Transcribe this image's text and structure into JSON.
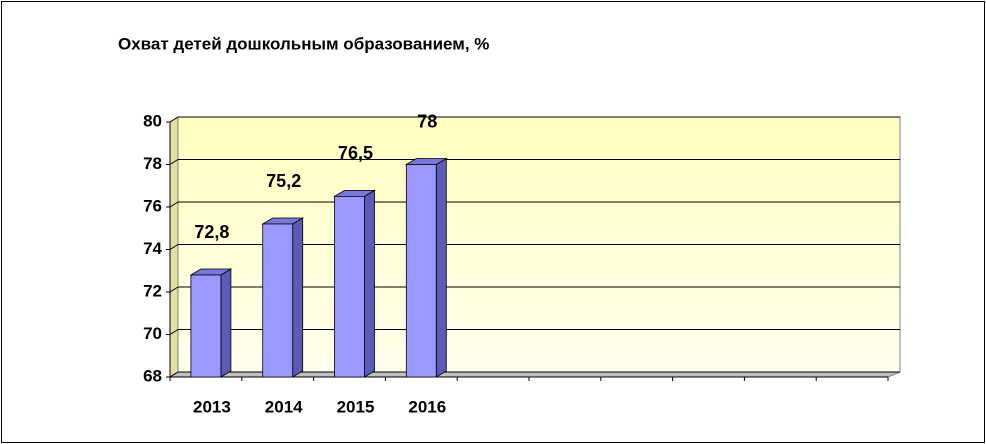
{
  "chart_data": {
    "type": "bar",
    "title": "Охват детей дошкольным образованием, %",
    "categories": [
      "2013",
      "2014",
      "2015",
      "2016",
      null,
      null,
      null,
      null,
      null,
      null
    ],
    "values": [
      72.8,
      75.2,
      76.5,
      78,
      null,
      null,
      null,
      null,
      null,
      null
    ],
    "value_labels": [
      "72,8",
      "75,2",
      "76,5",
      "78",
      null,
      null,
      null,
      null,
      null,
      null
    ],
    "color": "#9999ff",
    "ylim": [
      68,
      80
    ],
    "yticks": [
      68,
      70,
      72,
      74,
      76,
      78,
      80
    ],
    "grid": true
  }
}
